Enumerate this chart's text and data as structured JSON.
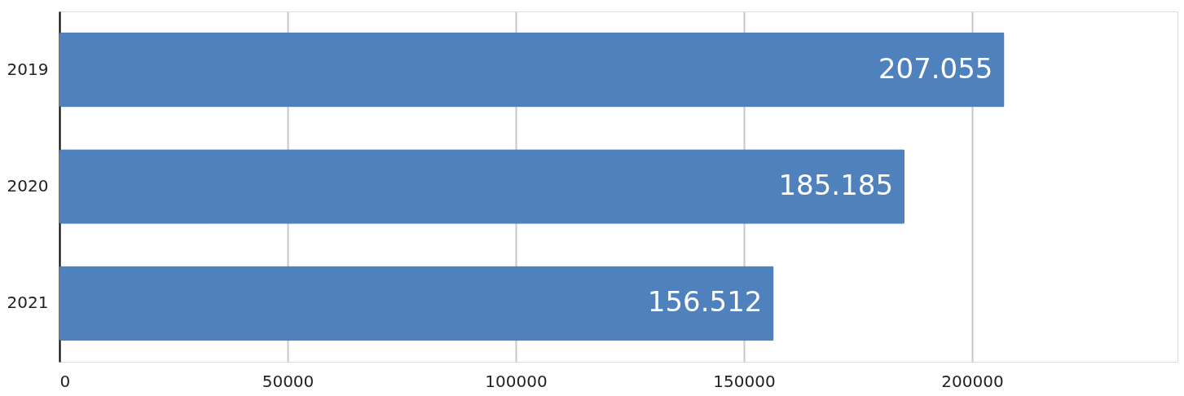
{
  "chart_data": {
    "type": "bar",
    "orientation": "horizontal",
    "categories": [
      "2019",
      "2020",
      "2021"
    ],
    "series": [
      {
        "color": "#4f81bd",
        "values": [
          207055,
          185185,
          156512
        ],
        "value_labels": [
          "207.055",
          "185.185",
          "156.512"
        ]
      }
    ],
    "xlim": [
      0,
      245000
    ],
    "xticks": [
      0,
      50000,
      100000,
      150000,
      200000
    ],
    "grid": "x"
  }
}
